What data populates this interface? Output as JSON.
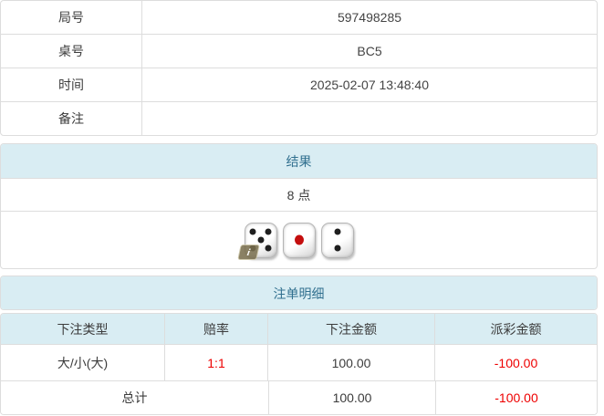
{
  "colors": {
    "accent_bg": "#d9edf3",
    "heading_text": "#31708f",
    "border": "#dddddd",
    "text": "#333333",
    "negative": "#ee0000",
    "pip_black": "#1f1f1f",
    "pip_red": "#c40e0e"
  },
  "info_table": {
    "rows": [
      {
        "label": "局号",
        "value": "597498285"
      },
      {
        "label": "桌号",
        "value": "BC5"
      },
      {
        "label": "时间",
        "value": "2025-02-07 13:48:40"
      },
      {
        "label": "备注",
        "value": ""
      }
    ]
  },
  "result_panel": {
    "title": "结果",
    "points": "8 点",
    "dice": [
      {
        "value": 5,
        "pip_color": "#1f1f1f"
      },
      {
        "value": 1,
        "pip_color": "#c40e0e"
      },
      {
        "value": 2,
        "pip_color": "#1f1f1f"
      }
    ],
    "info_icon": {
      "name": "info-icon",
      "glyph": "i"
    }
  },
  "bets_panel": {
    "title": "注单明细",
    "columns": [
      "下注类型",
      "赔率",
      "下注金额",
      "派彩金额"
    ],
    "rows": [
      {
        "type": "大/小(大)",
        "odds": "1:1",
        "bet": "100.00",
        "payout": "-100.00"
      }
    ],
    "total": {
      "label": "总计",
      "bet": "100.00",
      "payout": "-100.00"
    }
  }
}
